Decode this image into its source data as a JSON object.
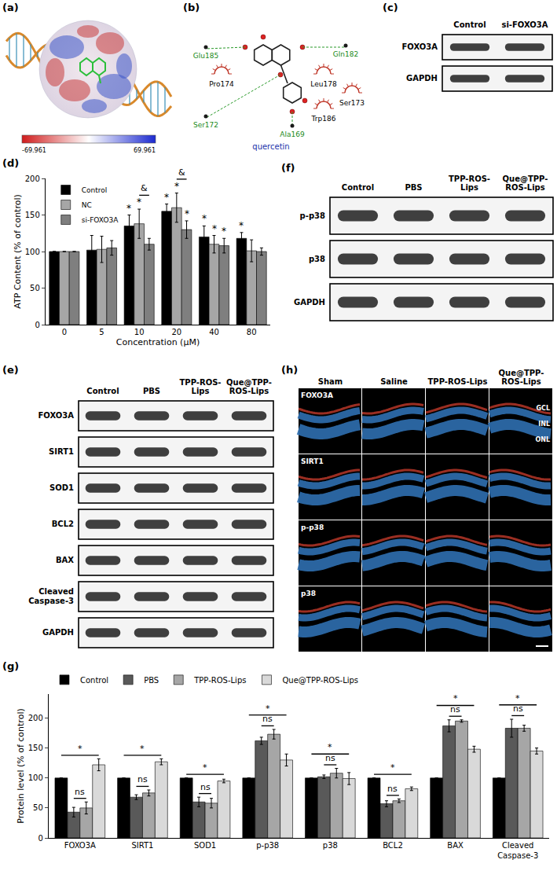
{
  "panels": {
    "a": {
      "label": "(a)",
      "colorbar_labels": [
        "-69.961",
        "69.961"
      ]
    },
    "b": {
      "label": "(b)",
      "ligand": "quercetin",
      "hbond_residues": [
        "Glu185",
        "Gln182",
        "Ser172",
        "Ala169"
      ],
      "hydrophobic_residues": [
        "Pro174",
        "Leu178",
        "Ser173",
        "Trp186"
      ]
    },
    "c": {
      "label": "(c)",
      "lanes": [
        "Control",
        "si-FOXO3A"
      ],
      "rows": [
        "FOXO3A",
        "GAPDH"
      ]
    },
    "e": {
      "label": "(e)",
      "lanes": [
        "Control",
        "PBS",
        "TPP-ROS-Lips",
        "Que@TPP-ROS-Lips"
      ],
      "rows": [
        "FOXO3A",
        "SIRT1",
        "SOD1",
        "BCL2",
        "BAX",
        "Cleaved Caspase-3",
        "GAPDH"
      ]
    },
    "f": {
      "label": "(f)",
      "lanes": [
        "Control",
        "PBS",
        "TPP-ROS-Lips",
        "Que@TPP-ROS-Lips"
      ],
      "rows": [
        "p-p38",
        "p38",
        "GAPDH"
      ]
    },
    "h": {
      "label": "(h)",
      "columns": [
        "Sham",
        "Saline",
        "TPP-ROS-Lips",
        "Que@TPP-ROS-Lips"
      ],
      "rows": [
        "FOXO3A",
        "SIRT1",
        "p-p38",
        "p38"
      ],
      "layers": [
        "GCL",
        "INL",
        "ONL"
      ]
    }
  },
  "chart_data": [
    {
      "title": "(d)",
      "type": "bar",
      "categories": [
        "0",
        "5",
        "10",
        "20",
        "40",
        "80"
      ],
      "x_label": "Concentration (μM)",
      "y_label": "ATP Content (% of control)",
      "ylim": [
        0,
        200
      ],
      "yticks": [
        0,
        50,
        100,
        150,
        200
      ],
      "grid": false,
      "legend": "top left",
      "series": [
        {
          "name": "Control",
          "color": "#000000",
          "values": [
            100,
            102,
            135,
            155,
            120,
            118
          ],
          "errors": [
            0,
            20,
            15,
            10,
            15,
            8
          ]
        },
        {
          "name": "NC",
          "color": "#a6a6a6",
          "values": [
            100,
            103,
            138,
            160,
            110,
            101
          ],
          "errors": [
            0,
            18,
            20,
            20,
            12,
            15
          ]
        },
        {
          "name": "si-FOXO3A",
          "color": "#7f7f7f",
          "values": [
            100,
            105,
            110,
            130,
            108,
            100
          ],
          "errors": [
            0,
            10,
            8,
            12,
            10,
            5
          ]
        }
      ],
      "annotations": [
        {
          "category": "10",
          "series": "Control",
          "text": "*"
        },
        {
          "category": "10",
          "series": "NC",
          "text": "*"
        },
        {
          "category": "20",
          "series": "Control",
          "text": "*"
        },
        {
          "category": "20",
          "series": "NC",
          "text": "*"
        },
        {
          "category": "20",
          "series": "si-FOXO3A",
          "text": "*"
        },
        {
          "category": "40",
          "series": "Control",
          "text": "*"
        },
        {
          "category": "40",
          "series": "NC",
          "text": "*"
        },
        {
          "category": "40",
          "series": "si-FOXO3A",
          "text": "*"
        },
        {
          "category": "80",
          "series": "Control",
          "text": "*"
        }
      ],
      "brackets": [
        {
          "category": "10",
          "from": "NC",
          "to": "si-FOXO3A",
          "text": "&"
        },
        {
          "category": "20",
          "from": "NC",
          "to": "si-FOXO3A",
          "text": "&"
        }
      ]
    },
    {
      "title": "(g)",
      "type": "bar",
      "categories": [
        "FOXO3A",
        "SIRT1",
        "SOD1",
        "p-p38",
        "p38",
        "BCL2",
        "BAX",
        "Cleaved Caspase-3"
      ],
      "y_label": "Protein level (% of control)",
      "ylim": [
        0,
        240
      ],
      "yticks": [
        0,
        50,
        100,
        150,
        200
      ],
      "grid": false,
      "legend": "top",
      "series": [
        {
          "name": "Control",
          "color": "#000000",
          "values": [
            100,
            100,
            100,
            100,
            100,
            100,
            100,
            100
          ],
          "errors": [
            0,
            0,
            0,
            0,
            0,
            0,
            0,
            0
          ]
        },
        {
          "name": "PBS",
          "color": "#595959",
          "values": [
            43,
            68,
            60,
            162,
            102,
            57,
            187,
            183
          ],
          "errors": [
            8,
            4,
            8,
            6,
            3,
            5,
            10,
            15
          ]
        },
        {
          "name": "TPP-ROS-Lips",
          "color": "#a6a6a6",
          "values": [
            50,
            75,
            58,
            173,
            108,
            62,
            195,
            183
          ],
          "errors": [
            10,
            5,
            8,
            8,
            8,
            3,
            2,
            5
          ]
        },
        {
          "name": "Que@TPP-ROS-Lips",
          "color": "#d9d9d9",
          "values": [
            122,
            127,
            95,
            130,
            99,
            82,
            148,
            145
          ],
          "errors": [
            10,
            5,
            3,
            10,
            10,
            3,
            5,
            5
          ]
        }
      ],
      "brackets": [
        {
          "category": "FOXO3A",
          "from": "PBS",
          "to": "TPP-ROS-Lips",
          "text": "ns"
        },
        {
          "category": "FOXO3A",
          "from": "Control",
          "to": "Que@TPP-ROS-Lips",
          "text": "*"
        },
        {
          "category": "SIRT1",
          "from": "PBS",
          "to": "TPP-ROS-Lips",
          "text": "ns"
        },
        {
          "category": "SIRT1",
          "from": "Control",
          "to": "Que@TPP-ROS-Lips",
          "text": "*"
        },
        {
          "category": "SOD1",
          "from": "PBS",
          "to": "TPP-ROS-Lips",
          "text": "ns"
        },
        {
          "category": "SOD1",
          "from": "Control",
          "to": "Que@TPP-ROS-Lips",
          "text": "*"
        },
        {
          "category": "p-p38",
          "from": "PBS",
          "to": "TPP-ROS-Lips",
          "text": "ns"
        },
        {
          "category": "p-p38",
          "from": "Control",
          "to": "Que@TPP-ROS-Lips",
          "text": "*"
        },
        {
          "category": "p38",
          "from": "PBS",
          "to": "TPP-ROS-Lips",
          "text": "ns"
        },
        {
          "category": "p38",
          "from": "Control",
          "to": "Que@TPP-ROS-Lips",
          "text": "*"
        },
        {
          "category": "BCL2",
          "from": "PBS",
          "to": "TPP-ROS-Lips",
          "text": "ns"
        },
        {
          "category": "BCL2",
          "from": "Control",
          "to": "Que@TPP-ROS-Lips",
          "text": "*"
        },
        {
          "category": "BAX",
          "from": "PBS",
          "to": "TPP-ROS-Lips",
          "text": "ns"
        },
        {
          "category": "BAX",
          "from": "Control",
          "to": "Que@TPP-ROS-Lips",
          "text": "*"
        },
        {
          "category": "Cleaved Caspase-3",
          "from": "PBS",
          "to": "TPP-ROS-Lips",
          "text": "ns"
        },
        {
          "category": "Cleaved Caspase-3",
          "from": "Control",
          "to": "Que@TPP-ROS-Lips",
          "text": "*"
        }
      ]
    }
  ]
}
